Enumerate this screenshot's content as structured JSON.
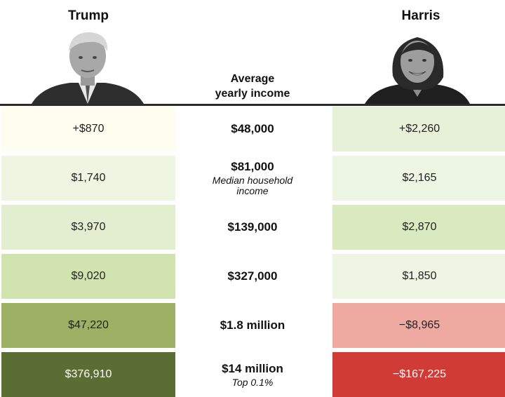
{
  "candidates": {
    "left": {
      "name": "Trump"
    },
    "right": {
      "name": "Harris"
    }
  },
  "column_header": {
    "line1": "Average",
    "line2": "yearly income"
  },
  "colors": {
    "baseline": "#2b2b2b",
    "left_rows": [
      "#fdfdf0",
      "#eef5e1",
      "#e3eed0",
      "#d1e3ae",
      "#9eb063",
      "#5a6d33"
    ],
    "right_rows": [
      "#e6f1d7",
      "#edf5e3",
      "#d9eac0",
      "#eef5e3",
      "#eeaaa0",
      "#d03b35"
    ]
  },
  "rows": [
    {
      "left": "+$870",
      "income": "$48,000",
      "note": "",
      "right": "+$2,260"
    },
    {
      "left": "$1,740",
      "income": "$81,000",
      "note": "Median household income",
      "right": "$2,165"
    },
    {
      "left": "$3,970",
      "income": "$139,000",
      "note": "",
      "right": "$2,870"
    },
    {
      "left": "$9,020",
      "income": "$327,000",
      "note": "",
      "right": "$1,850"
    },
    {
      "left": "$47,220",
      "income": "$1.8 million",
      "note": "",
      "right": "−$8,965"
    },
    {
      "left": "$376,910",
      "income": "$14 million",
      "note": "Top 0.1%",
      "right": "−$167,225"
    }
  ]
}
